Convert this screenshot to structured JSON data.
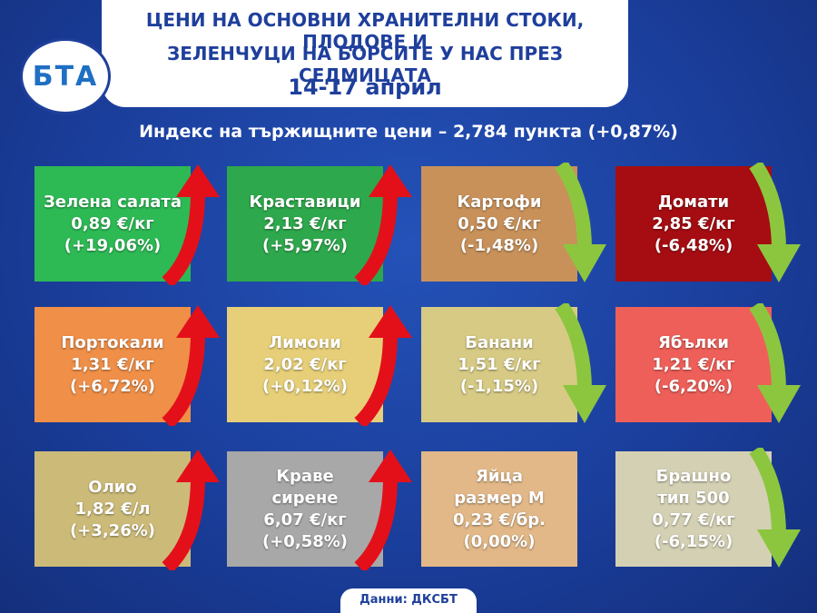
{
  "header": {
    "title_lines": [
      "ЦЕНИ НА ОСНОВНИ ХРАНИТЕЛНИ СТОКИ, ПЛОДОВЕ И",
      "ЗЕЛЕНЧУЦИ НА БОРСИТЕ У НАС ПРЕЗ СЕДМИЦАТА"
    ],
    "date": "14-17 април",
    "logo": "БТА"
  },
  "index_line": "Индекс на тържищните цени – 2,784 пункта (+0,87%)",
  "cards": [
    {
      "name": [
        "Зелена салата"
      ],
      "price": "0,89 €/кг",
      "change": "(+19,06%)",
      "color": "#2dba55",
      "trend": "up"
    },
    {
      "name": [
        "Краставици"
      ],
      "price": "2,13 €/кг",
      "change": "(+5,97%)",
      "color": "#2ea84c",
      "trend": "up"
    },
    {
      "name": [
        "Картофи"
      ],
      "price": "0,50 €/кг",
      "change": "(-1,48%)",
      "color": "#c8915a",
      "trend": "down"
    },
    {
      "name": [
        "Домати"
      ],
      "price": "2,85 €/кг",
      "change": "(-6,48%)",
      "color": "#a50d12",
      "trend": "down"
    },
    {
      "name": [
        "Портокали"
      ],
      "price": "1,31 €/кг",
      "change": "(+6,72%)",
      "color": "#ef8f48",
      "trend": "up"
    },
    {
      "name": [
        "Лимони"
      ],
      "price": "2,02 €/кг",
      "change": "(+0,12%)",
      "color": "#e6cf78",
      "trend": "up"
    },
    {
      "name": [
        "Банани"
      ],
      "price": "1,51 €/кг",
      "change": "(-1,15%)",
      "color": "#d6ca84",
      "trend": "down"
    },
    {
      "name": [
        "Ябълки"
      ],
      "price": "1,21 €/кг",
      "change": "(-6,20%)",
      "color": "#ef5f59",
      "trend": "down"
    },
    {
      "name": [
        "Олио"
      ],
      "price": "1,82 €/л",
      "change": "(+3,26%)",
      "color": "#ccbb78",
      "trend": "up"
    },
    {
      "name": [
        "Краве",
        "сирене"
      ],
      "price": "6,07 €/кг",
      "change": "(+0,58%)",
      "color": "#a8a8a8",
      "trend": "up"
    },
    {
      "name": [
        "Яйца",
        "размер М"
      ],
      "price": "0,23 €/бр.",
      "change": "(0,00%)",
      "color": "#e2b888"
    },
    {
      "name": [
        "Брашно",
        "тип 500"
      ],
      "price": "0,77 €/кг",
      "change": "(-6,15%)",
      "color": "#d4d0b4",
      "trend": "down"
    }
  ],
  "footer": "Данни: ДКСБТ"
}
